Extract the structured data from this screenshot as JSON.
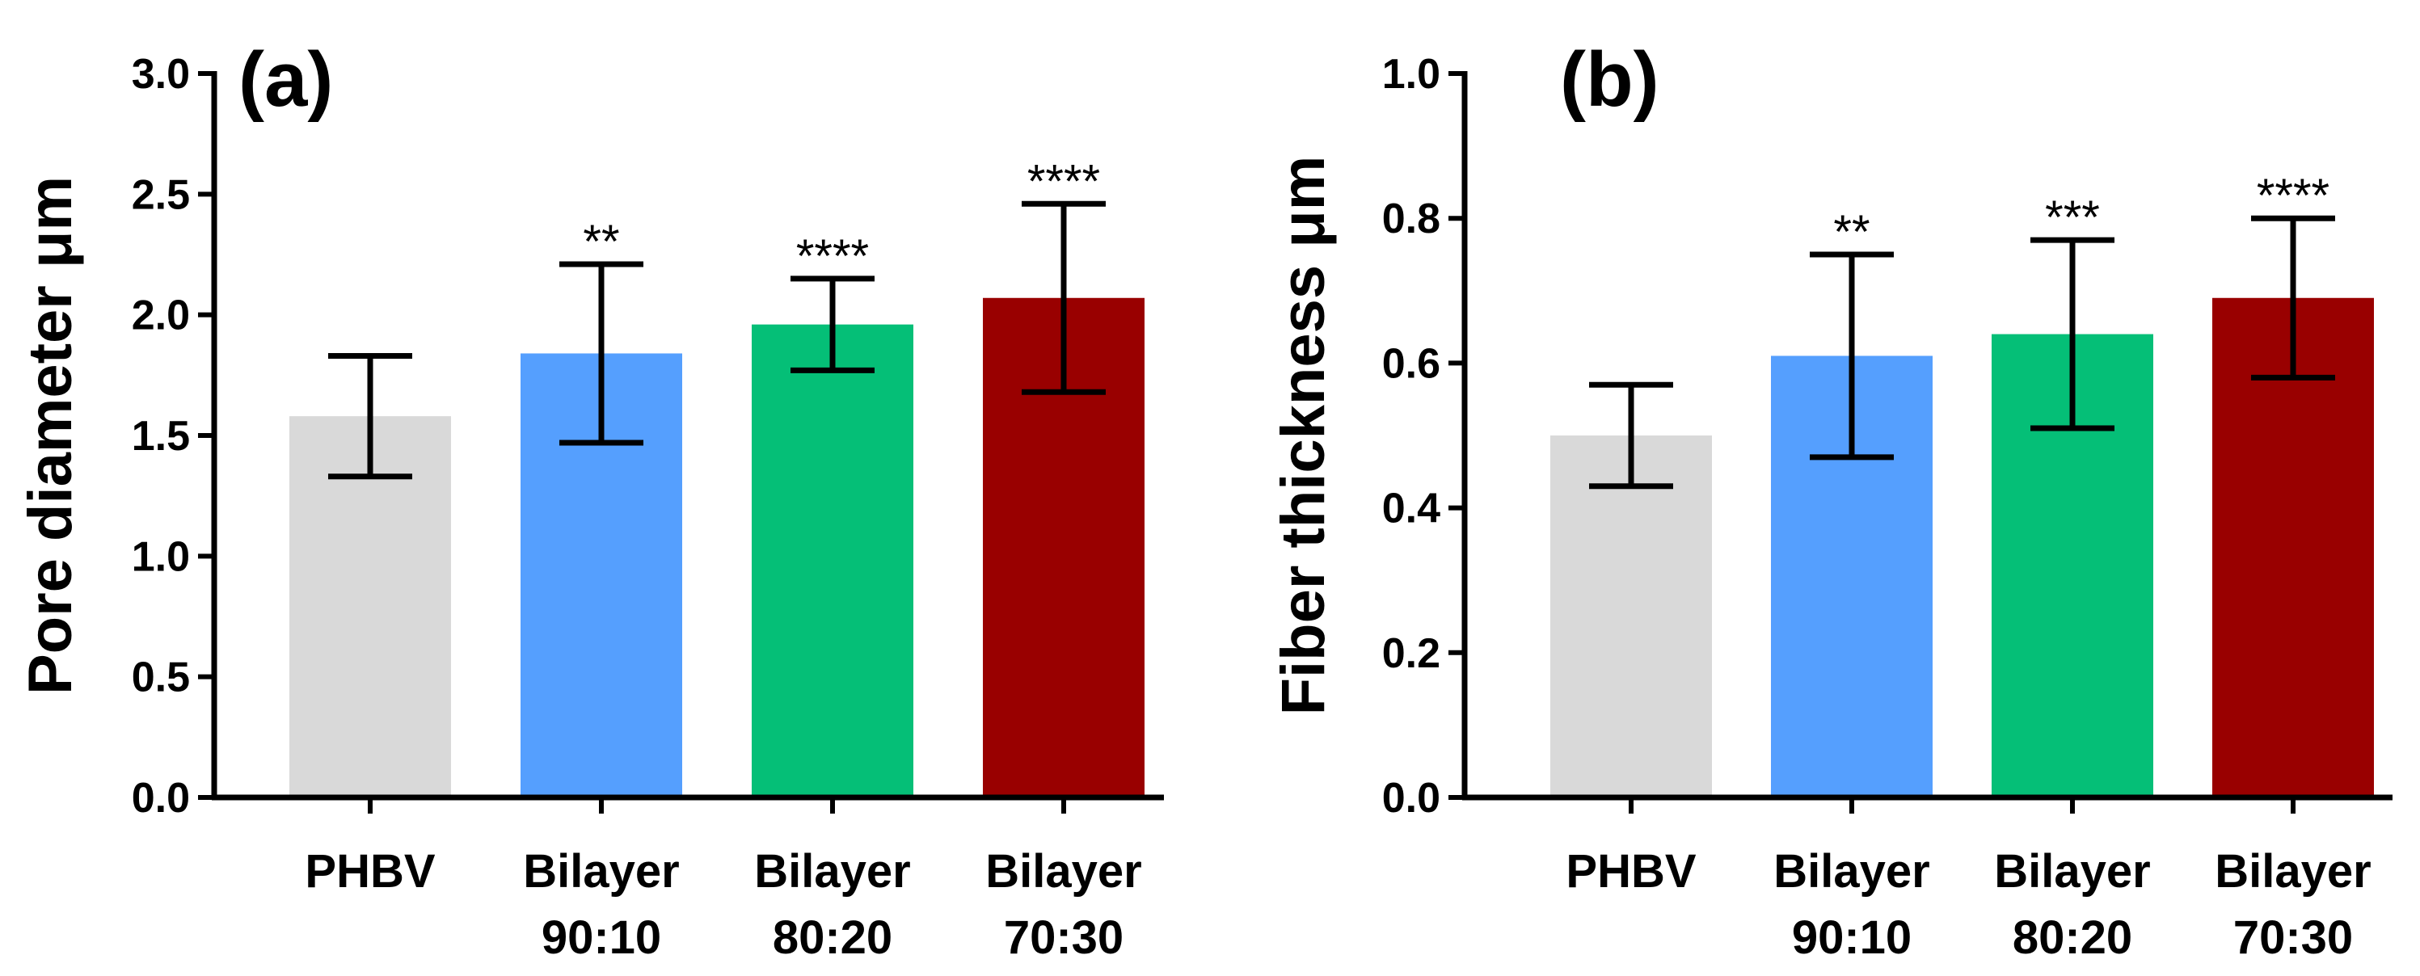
{
  "chart_data": [
    {
      "type": "bar",
      "panel_label": "(a)",
      "title": "",
      "xlabel": "",
      "ylabel": "Pore diameter μm",
      "ylim": [
        0,
        3.0
      ],
      "yticks": [
        "0.0",
        "0.5",
        "1.0",
        "1.5",
        "2.0",
        "2.5",
        "3.0"
      ],
      "categories": [
        {
          "line1": "PHBV",
          "line2": ""
        },
        {
          "line1": "Bilayer",
          "line2": "90:10"
        },
        {
          "line1": "Bilayer",
          "line2": "80:20"
        },
        {
          "line1": "Bilayer",
          "line2": "70:30"
        }
      ],
      "values": [
        1.58,
        1.84,
        1.96,
        2.07
      ],
      "errors": [
        0.25,
        0.37,
        0.19,
        0.39
      ],
      "significance": [
        "",
        "**",
        "****",
        "****"
      ],
      "colors": [
        "#d9d9d9",
        "#559ffe",
        "#05bf77",
        "#990000"
      ],
      "grid": false
    },
    {
      "type": "bar",
      "panel_label": "(b)",
      "title": "",
      "xlabel": "",
      "ylabel": "Fiber thickness μm",
      "ylim": [
        0,
        1.0
      ],
      "yticks": [
        "0.0",
        "0.2",
        "0.4",
        "0.6",
        "0.8",
        "1.0"
      ],
      "categories": [
        {
          "line1": "PHBV",
          "line2": ""
        },
        {
          "line1": "Bilayer",
          "line2": "90:10"
        },
        {
          "line1": "Bilayer",
          "line2": "80:20"
        },
        {
          "line1": "Bilayer",
          "line2": "70:30"
        }
      ],
      "values": [
        0.5,
        0.61,
        0.64,
        0.69
      ],
      "errors": [
        0.07,
        0.14,
        0.13,
        0.11
      ],
      "significance": [
        "",
        "**",
        "***",
        "****"
      ],
      "colors": [
        "#d9d9d9",
        "#559ffe",
        "#05bf77",
        "#990000"
      ],
      "grid": false
    }
  ]
}
